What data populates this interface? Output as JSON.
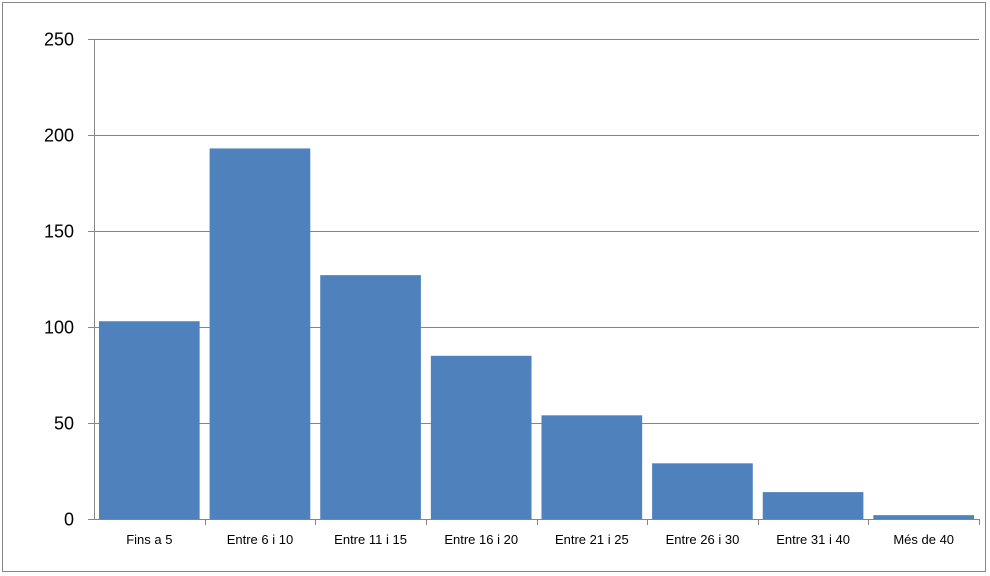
{
  "chart_data": {
    "type": "bar",
    "title": "",
    "xlabel": "",
    "ylabel": "",
    "categories": [
      "Fins a 5",
      "Entre 6 i 10",
      "Entre 11 i 15",
      "Entre 16 i 20",
      "Entre 21 i 25",
      "Entre 26 i 30",
      "Entre 31 i 40",
      "Més de 40"
    ],
    "values": [
      103,
      193,
      127,
      85,
      54,
      29,
      14,
      2
    ],
    "ylim": [
      0,
      250
    ],
    "yticks": [
      0,
      50,
      100,
      150,
      200,
      250
    ],
    "grid": true,
    "legend": "none",
    "colors": {
      "bar": "#4F81BD",
      "grid": "#868686",
      "axis": "#868686"
    }
  }
}
